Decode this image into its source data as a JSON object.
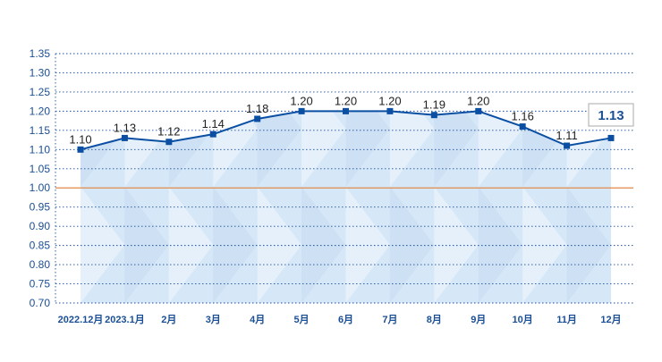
{
  "chart_data": {
    "type": "line",
    "categories": [
      "2022.12月",
      "2023.1月",
      "2月",
      "3月",
      "4月",
      "5月",
      "6月",
      "7月",
      "8月",
      "9月",
      "10月",
      "11月",
      "12月"
    ],
    "series": [
      {
        "values": [
          1.1,
          1.13,
          1.12,
          1.14,
          1.18,
          1.2,
          1.2,
          1.2,
          1.19,
          1.2,
          1.16,
          1.11,
          1.13
        ]
      }
    ],
    "data_labels": [
      "1.10",
      "1.13",
      "1.12",
      "1.14",
      "1.18",
      "1.20",
      "1.20",
      "1.20",
      "1.19",
      "1.20",
      "1.16",
      "1.11",
      "1.13"
    ],
    "y_ticks": [
      "0.70",
      "0.75",
      "0.80",
      "0.85",
      "0.90",
      "0.95",
      "1.00",
      "1.05",
      "1.10",
      "1.15",
      "1.20",
      "1.25",
      "1.30",
      "1.35"
    ],
    "ylim": [
      0.7,
      1.35
    ],
    "reference_line": 1.0,
    "callout": "1.13",
    "grid": "horizontal dotted",
    "colors": {
      "line": "#0b4fa3",
      "axis_text": "#1a4f96",
      "grid": "#1a4f96",
      "reference": "#e08a4a",
      "area": "#d6e8f8",
      "callout_border": "#b8b8b8"
    }
  }
}
